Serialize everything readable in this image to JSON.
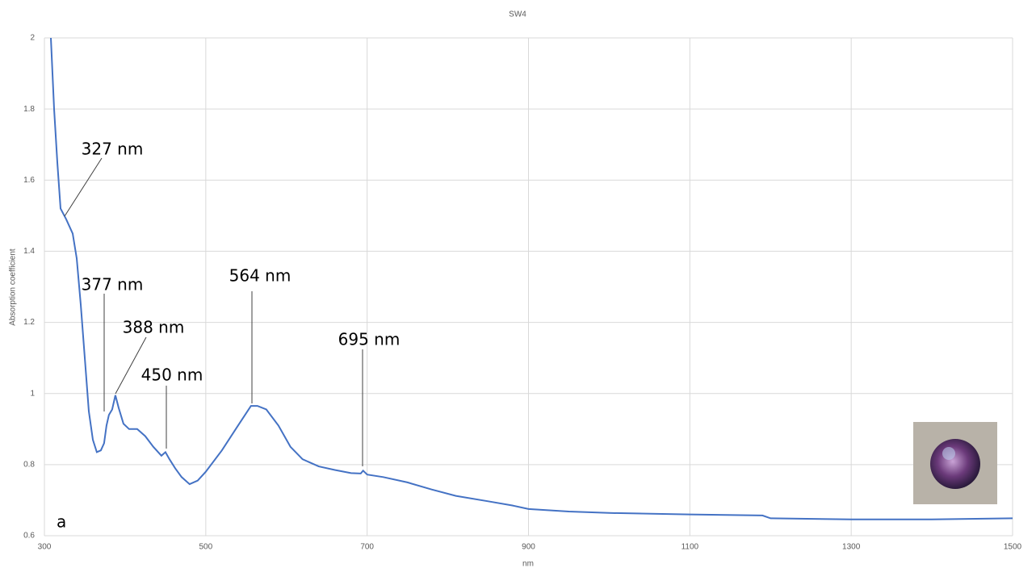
{
  "chart_data": {
    "type": "line",
    "title": "SW4",
    "x_label": "nm",
    "y_label": "Absorption coefficient",
    "panel_label": "a",
    "xlim": [
      300,
      1500
    ],
    "xticks": [
      300,
      500,
      700,
      900,
      1100,
      1300,
      1500
    ],
    "ylim": [
      0.6,
      2
    ],
    "yticks": [
      0.6,
      0.8,
      1,
      1.2,
      1.4,
      1.6,
      1.8,
      2
    ],
    "grid": true,
    "annotations": [
      "327 nm",
      "377 nm",
      "388 nm",
      "450 nm",
      "564 nm",
      "695 nm"
    ],
    "x": [
      308,
      312,
      316,
      320,
      327,
      335,
      340,
      345,
      350,
      355,
      360,
      365,
      370,
      374,
      377,
      380,
      384,
      388,
      392,
      398,
      405,
      415,
      425,
      435,
      445,
      450,
      455,
      462,
      470,
      480,
      490,
      500,
      520,
      540,
      556,
      564,
      575,
      590,
      605,
      620,
      640,
      660,
      680,
      692,
      695,
      700,
      720,
      750,
      780,
      810,
      850,
      880,
      900,
      950,
      1000,
      1100,
      1190,
      1200,
      1300,
      1400,
      1500
    ],
    "series": [
      {
        "color": "#4472c4",
        "values": [
          2.0,
          1.8,
          1.65,
          1.52,
          1.49,
          1.45,
          1.38,
          1.25,
          1.1,
          0.95,
          0.87,
          0.835,
          0.84,
          0.86,
          0.91,
          0.94,
          0.955,
          0.995,
          0.96,
          0.915,
          0.9,
          0.9,
          0.88,
          0.85,
          0.825,
          0.835,
          0.815,
          0.79,
          0.765,
          0.745,
          0.755,
          0.78,
          0.84,
          0.91,
          0.965,
          0.965,
          0.955,
          0.91,
          0.85,
          0.815,
          0.795,
          0.785,
          0.776,
          0.775,
          0.783,
          0.772,
          0.765,
          0.75,
          0.73,
          0.712,
          0.697,
          0.685,
          0.675,
          0.668,
          0.664,
          0.66,
          0.657,
          0.649,
          0.646,
          0.646,
          0.649
        ]
      }
    ]
  }
}
